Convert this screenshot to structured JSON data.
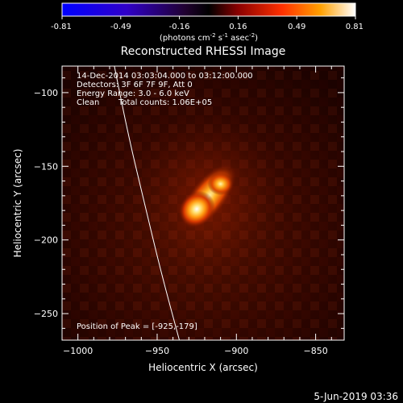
{
  "colorbar": {
    "ticks": [
      "-0.81",
      "-0.49",
      "-0.16",
      "0.16",
      "0.49",
      "0.81"
    ],
    "units_prefix": "(photons cm",
    "units_sup1": "-2",
    "units_mid1": " s",
    "units_sup2": "-1",
    "units_mid2": " asec",
    "units_sup3": "-2",
    "units_suffix": ")"
  },
  "title": "Reconstructed RHESSI Image",
  "info": {
    "line1": "14-Dec-2014 03:03:04.000 to 03:12:00.000",
    "line2": "Detectors: 3F 6F 7F 9F, Att 0",
    "line3": "Energy Range: 3.0 - 6.0 keV",
    "line4a": "Clean",
    "line4b": "Total counts: 1.06E+05"
  },
  "peak_label": "Position of Peak = [-925,-179]",
  "axes": {
    "xlabel": "Heliocentric X (arcsec)",
    "ylabel": "Heliocentric Y (arcsec)",
    "xticks": [
      -1000,
      -950,
      -900,
      -850
    ],
    "yticks": [
      -100,
      -150,
      -200,
      -250
    ],
    "xlim": [
      -1010,
      -832
    ],
    "ylim": [
      -268,
      -82
    ]
  },
  "source": {
    "peak_x": -925,
    "peak_y": -179,
    "secondary_x": -910,
    "secondary_y": -162
  },
  "limb": {
    "points": [
      [
        -977,
        -82
      ],
      [
        -968,
        -130
      ],
      [
        -958,
        -175
      ],
      [
        -948,
        -220
      ],
      [
        -936,
        -268
      ]
    ]
  },
  "footer_date": "5-Jun-2019 03:36"
}
